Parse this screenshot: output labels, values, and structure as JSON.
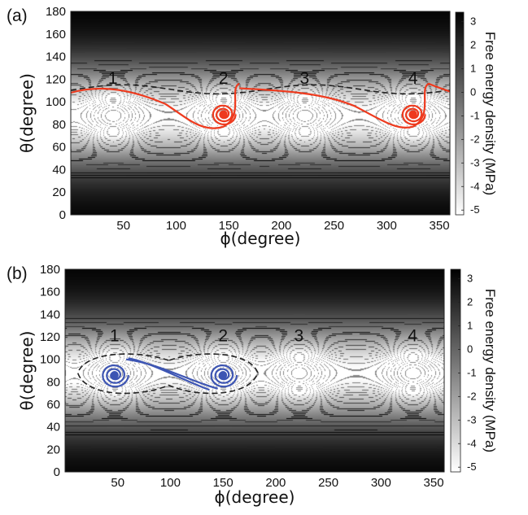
{
  "chart_data": [
    {
      "panel_label": "(a)",
      "type": "heatmap",
      "xlabel": "ϕ(degree)",
      "ylabel": "θ(degree)",
      "xlim": [
        0,
        360
      ],
      "ylim": [
        0,
        180
      ],
      "xticks": [
        "50",
        "100",
        "150",
        "200",
        "250",
        "300",
        "350"
      ],
      "yticks": [
        "0",
        "20",
        "40",
        "60",
        "80",
        "100",
        "120",
        "140",
        "160",
        "180"
      ],
      "colorbar": {
        "label": "Free energy density (MPa)",
        "range": [
          -5.2,
          3.4
        ],
        "ticks": [
          "3",
          "2",
          "1",
          "0",
          "-1",
          "-2",
          "-3",
          "-4",
          "-5"
        ],
        "colors": [
          "#ffffff",
          "#000000"
        ]
      },
      "wells": [
        {
          "label": "1",
          "phi": 40,
          "theta": 88
        },
        {
          "label": "2",
          "phi": 145,
          "theta": 88
        },
        {
          "label": "3",
          "phi": 222,
          "theta": 88
        },
        {
          "label": "4",
          "phi": 325,
          "theta": 88
        }
      ],
      "trajectory": {
        "color": "#ee3a1e",
        "spiral_centers": [
          [
            145,
            89
          ],
          [
            325,
            89
          ]
        ]
      },
      "separatrix": {
        "style": "dashed",
        "color": "#222222"
      }
    },
    {
      "panel_label": "(b)",
      "type": "heatmap",
      "xlabel": "ϕ(degree)",
      "ylabel": "θ(degree)",
      "xlim": [
        0,
        360
      ],
      "ylim": [
        0,
        180
      ],
      "xticks": [
        "50",
        "100",
        "150",
        "200",
        "250",
        "300",
        "350"
      ],
      "yticks": [
        "0",
        "20",
        "40",
        "60",
        "80",
        "100",
        "120",
        "140",
        "160",
        "180"
      ],
      "colorbar": {
        "label": "Free energy density (MPa)",
        "range": [
          -5.2,
          3.4
        ],
        "ticks": [
          "3",
          "2",
          "1",
          "0",
          "-1",
          "-2",
          "-3",
          "-4",
          "-5"
        ],
        "colors": [
          "#ffffff",
          "#000000"
        ]
      },
      "wells": [
        {
          "label": "1",
          "phi": 47,
          "theta": 88
        },
        {
          "label": "2",
          "phi": 150,
          "theta": 88
        },
        {
          "label": "3",
          "phi": 222,
          "theta": 88
        },
        {
          "label": "4",
          "phi": 330,
          "theta": 88
        }
      ],
      "trajectory": {
        "color": "#3d55b3",
        "spiral_centers": [
          [
            47,
            86
          ],
          [
            150,
            86
          ]
        ]
      },
      "separatrix": {
        "style": "dashed",
        "color": "#222222"
      }
    }
  ]
}
